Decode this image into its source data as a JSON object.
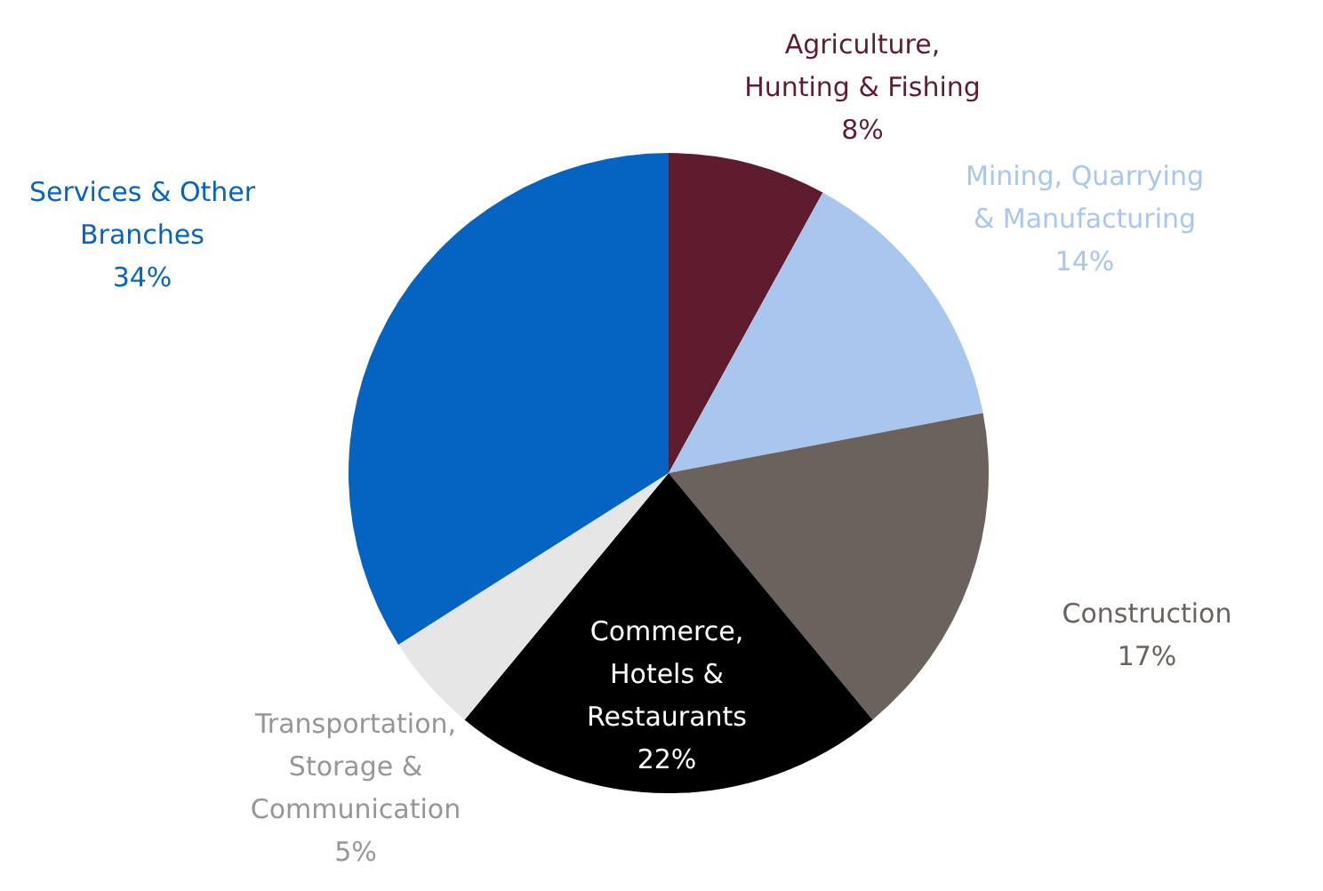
{
  "chart_data": {
    "type": "pie",
    "categories": [
      "Agriculture, Hunting & Fishing",
      "Mining, Quarrying & Manufacturing",
      "Construction",
      "Commerce, Hotels & Restaurants",
      "Transportation, Storage & Communication",
      "Services & Other Branches"
    ],
    "values": [
      8,
      14,
      17,
      22,
      5,
      34
    ],
    "colors": [
      "#5e1c2e",
      "#a8c6ee",
      "#6b615d",
      "#000000",
      "#e6e6e6",
      "#0563c1"
    ],
    "value_labels": [
      "8%",
      "14%",
      "17%",
      "22%",
      "5%",
      "34%"
    ]
  }
}
